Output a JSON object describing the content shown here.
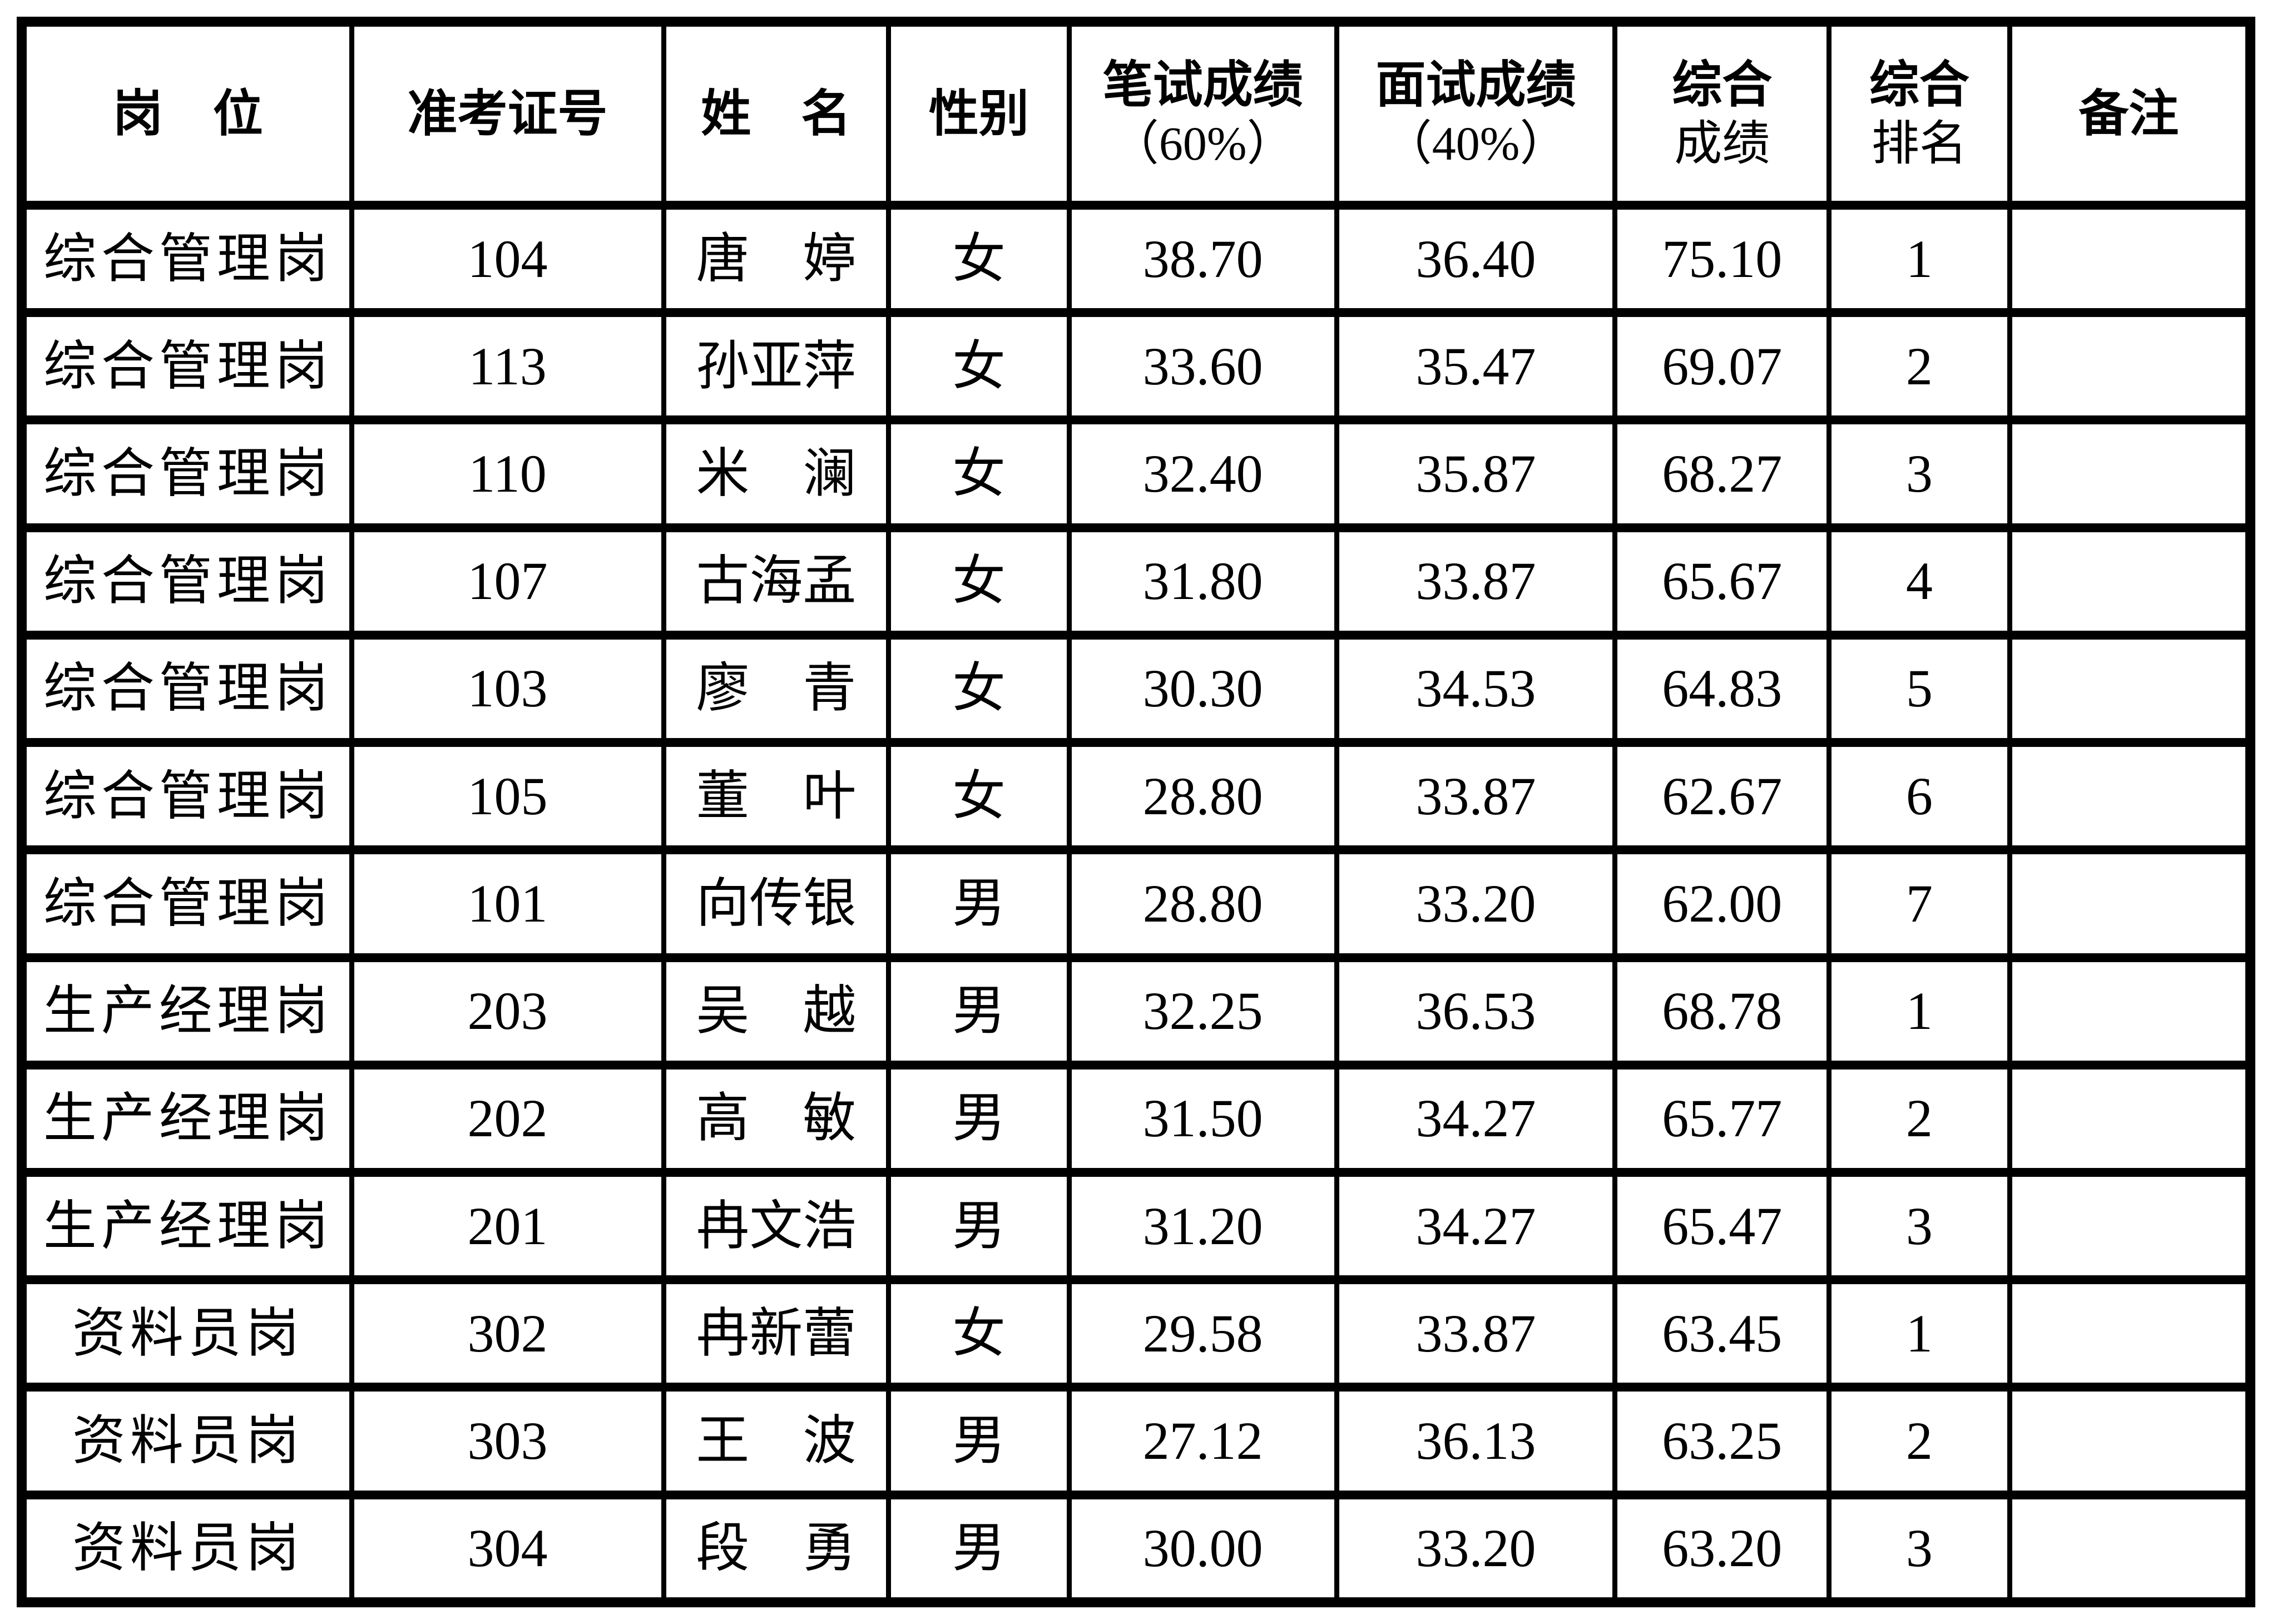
{
  "page": {
    "background_color": "#ffffff",
    "line_color": "#000000"
  },
  "table": {
    "columns": [
      {
        "key": "position",
        "label": "岗　位"
      },
      {
        "key": "exam_no",
        "label": "准考证号"
      },
      {
        "key": "name",
        "label": "姓　名"
      },
      {
        "key": "gender",
        "label": "性别"
      },
      {
        "key": "written",
        "label": "笔试成绩",
        "label2": "（60%）"
      },
      {
        "key": "interview",
        "label": "面试成绩",
        "label2": "（40%）"
      },
      {
        "key": "total",
        "label": "综合",
        "label2": "成绩"
      },
      {
        "key": "rank",
        "label": "综合",
        "label2": "排名"
      },
      {
        "key": "note",
        "label": "备注"
      }
    ],
    "rows": [
      {
        "position": "综合管理岗",
        "exam_no": "104",
        "name": "唐　婷",
        "gender": "女",
        "written": "38.70",
        "interview": "36.40",
        "total": "75.10",
        "rank": "1",
        "note": ""
      },
      {
        "position": "综合管理岗",
        "exam_no": "113",
        "name": "孙亚萍",
        "gender": "女",
        "written": "33.60",
        "interview": "35.47",
        "total": "69.07",
        "rank": "2",
        "note": ""
      },
      {
        "position": "综合管理岗",
        "exam_no": "110",
        "name": "米　澜",
        "gender": "女",
        "written": "32.40",
        "interview": "35.87",
        "total": "68.27",
        "rank": "3",
        "note": ""
      },
      {
        "position": "综合管理岗",
        "exam_no": "107",
        "name": "古海孟",
        "gender": "女",
        "written": "31.80",
        "interview": "33.87",
        "total": "65.67",
        "rank": "4",
        "note": ""
      },
      {
        "position": "综合管理岗",
        "exam_no": "103",
        "name": "廖　青",
        "gender": "女",
        "written": "30.30",
        "interview": "34.53",
        "total": "64.83",
        "rank": "5",
        "note": ""
      },
      {
        "position": "综合管理岗",
        "exam_no": "105",
        "name": "董　叶",
        "gender": "女",
        "written": "28.80",
        "interview": "33.87",
        "total": "62.67",
        "rank": "6",
        "note": ""
      },
      {
        "position": "综合管理岗",
        "exam_no": "101",
        "name": "向传银",
        "gender": "男",
        "written": "28.80",
        "interview": "33.20",
        "total": "62.00",
        "rank": "7",
        "note": ""
      },
      {
        "position": "生产经理岗",
        "exam_no": "203",
        "name": "吴　越",
        "gender": "男",
        "written": "32.25",
        "interview": "36.53",
        "total": "68.78",
        "rank": "1",
        "note": ""
      },
      {
        "position": "生产经理岗",
        "exam_no": "202",
        "name": "高　敏",
        "gender": "男",
        "written": "31.50",
        "interview": "34.27",
        "total": "65.77",
        "rank": "2",
        "note": ""
      },
      {
        "position": "生产经理岗",
        "exam_no": "201",
        "name": "冉文浩",
        "gender": "男",
        "written": "31.20",
        "interview": "34.27",
        "total": "65.47",
        "rank": "3",
        "note": ""
      },
      {
        "position": "资料员岗",
        "exam_no": "302",
        "name": "冉新蕾",
        "gender": "女",
        "written": "29.58",
        "interview": "33.87",
        "total": "63.45",
        "rank": "1",
        "note": ""
      },
      {
        "position": "资料员岗",
        "exam_no": "303",
        "name": "王　波",
        "gender": "男",
        "written": "27.12",
        "interview": "36.13",
        "total": "63.25",
        "rank": "2",
        "note": ""
      },
      {
        "position": "资料员岗",
        "exam_no": "304",
        "name": "段　勇",
        "gender": "男",
        "written": "30.00",
        "interview": "33.20",
        "total": "63.20",
        "rank": "3",
        "note": ""
      }
    ]
  }
}
